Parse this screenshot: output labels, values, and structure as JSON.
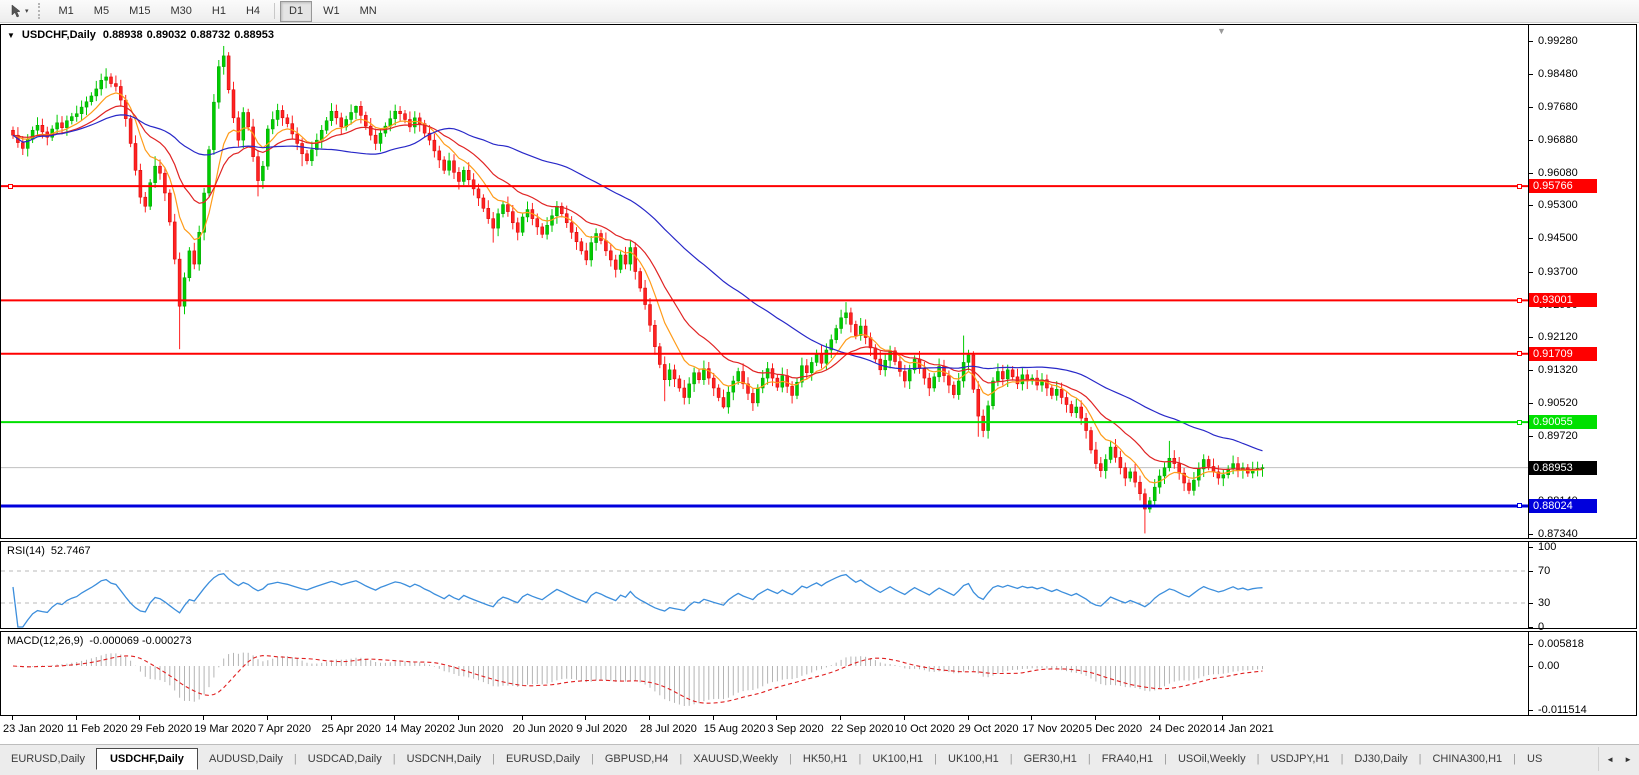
{
  "toolbar": {
    "dropdown_glyph": "▾",
    "timeframes": [
      "M1",
      "M5",
      "M15",
      "M30",
      "H1",
      "H4",
      "D1",
      "W1",
      "MN"
    ],
    "active_timeframe": "D1"
  },
  "main_chart": {
    "collapse_glyph": "▼",
    "symbol": "USDCHF,Daily",
    "open": "0.88938",
    "high": "0.89032",
    "low": "0.88732",
    "close": "0.88953",
    "shift_marker_glyph": "▼"
  },
  "rsi_panel": {
    "label": "RSI(14)",
    "value": "52.7467"
  },
  "macd_panel": {
    "label": "MACD(12,26,9)",
    "values": "-0.000069 -0.000273"
  },
  "chart_data": {
    "type": "candlestick",
    "symbol": "USDCHF",
    "timeframe": "Daily",
    "last_ohlc": {
      "open": 0.88938,
      "high": 0.89032,
      "low": 0.88732,
      "close": 0.88953
    },
    "y_axis_labels": [
      "0.99280",
      "0.98480",
      "0.97680",
      "0.96880",
      "0.96080",
      "0.95300",
      "0.94500",
      "0.93700",
      "0.92900",
      "0.92120",
      "0.91320",
      "0.90520",
      "0.89720",
      "0.88920",
      "0.88140",
      "0.87340"
    ],
    "x_ticks": [
      {
        "bar": 0,
        "label": "23 Jan 2020"
      },
      {
        "bar": 13,
        "label": "11 Feb 2020"
      },
      {
        "bar": 26,
        "label": "29 Feb 2020"
      },
      {
        "bar": 39,
        "label": "19 Mar 2020"
      },
      {
        "bar": 52,
        "label": "7 Apr 2020"
      },
      {
        "bar": 65,
        "label": "25 Apr 2020"
      },
      {
        "bar": 78,
        "label": "14 May 2020"
      },
      {
        "bar": 91,
        "label": "2 Jun 2020"
      },
      {
        "bar": 104,
        "label": "20 Jun 2020"
      },
      {
        "bar": 117,
        "label": "9 Jul 2020"
      },
      {
        "bar": 130,
        "label": "28 Jul 2020"
      },
      {
        "bar": 143,
        "label": "15 Aug 2020"
      },
      {
        "bar": 156,
        "label": "3 Sep 2020"
      },
      {
        "bar": 169,
        "label": "22 Sep 2020"
      },
      {
        "bar": 182,
        "label": "10 Oct 2020"
      },
      {
        "bar": 195,
        "label": "29 Oct 2020"
      },
      {
        "bar": 208,
        "label": "17 Nov 2020"
      },
      {
        "bar": 221,
        "label": "5 Dec 2020"
      },
      {
        "bar": 234,
        "label": "24 Dec 2020"
      },
      {
        "bar": 247,
        "label": "14 Jan 2021"
      }
    ],
    "hlines": [
      {
        "price": 0.95766,
        "label": "0.95766",
        "color": "#ff0000",
        "width": 2,
        "text_color": "#ffffff",
        "left_handle": true
      },
      {
        "price": 0.93001,
        "label": "0.93001",
        "color": "#ff0000",
        "width": 2,
        "text_color": "#ffffff",
        "left_handle": false
      },
      {
        "price": 0.91709,
        "label": "0.91709",
        "color": "#ff0000",
        "width": 2,
        "text_color": "#ffffff",
        "left_handle": false
      },
      {
        "price": 0.90055,
        "label": "0.90055",
        "color": "#00e000",
        "width": 2,
        "text_color": "#ffffff",
        "left_handle": false
      },
      {
        "price": 0.88024,
        "label": "0.88024",
        "color": "#0000dc",
        "width": 3,
        "text_color": "#ffffff",
        "left_handle": false
      }
    ],
    "current_price": {
      "price": 0.88953,
      "label": "0.88953",
      "line_color": "#c0c0c0",
      "box_color": "#000000",
      "text_color": "#ffffff"
    },
    "candles": {
      "bull_color": "#00cc00",
      "bull_stroke": "#00a000",
      "bear_color": "#ff2222",
      "bear_stroke": "#d40000",
      "first_open": 0.9712,
      "closes": [
        0.97,
        0.9682,
        0.9668,
        0.969,
        0.9712,
        0.9724,
        0.9708,
        0.9695,
        0.9715,
        0.973,
        0.9718,
        0.9735,
        0.9745,
        0.9752,
        0.9768,
        0.9781,
        0.9795,
        0.9812,
        0.9833,
        0.9841,
        0.9825,
        0.9818,
        0.9785,
        0.974,
        0.968,
        0.9615,
        0.955,
        0.9528,
        0.9585,
        0.9625,
        0.9608,
        0.956,
        0.949,
        0.94,
        0.9286,
        0.9355,
        0.942,
        0.9388,
        0.9465,
        0.956,
        0.9665,
        0.978,
        0.9866,
        0.9892,
        0.981,
        0.9742,
        0.9688,
        0.9755,
        0.972,
        0.9648,
        0.959,
        0.9625,
        0.9715,
        0.9738,
        0.976,
        0.9742,
        0.9728,
        0.9703,
        0.968,
        0.9655,
        0.9638,
        0.9665,
        0.9688,
        0.9712,
        0.9735,
        0.9758,
        0.9742,
        0.972,
        0.9738,
        0.9755,
        0.977,
        0.9748,
        0.9722,
        0.97,
        0.968,
        0.9705,
        0.9722,
        0.974,
        0.9758,
        0.9752,
        0.9738,
        0.972,
        0.9742,
        0.9728,
        0.9705,
        0.9688,
        0.9662,
        0.964,
        0.9615,
        0.9638,
        0.961,
        0.9588,
        0.9615,
        0.9592,
        0.957,
        0.9548,
        0.9523,
        0.9498,
        0.9475,
        0.951,
        0.9532,
        0.9515,
        0.9488,
        0.9465,
        0.9502,
        0.952,
        0.9498,
        0.9478,
        0.946,
        0.9482,
        0.9505,
        0.9528,
        0.951,
        0.9488,
        0.9465,
        0.9442,
        0.942,
        0.9398,
        0.944,
        0.9462,
        0.9445,
        0.942,
        0.9398,
        0.9375,
        0.941,
        0.9388,
        0.9428,
        0.937,
        0.933,
        0.929,
        0.924,
        0.9188,
        0.9145,
        0.9108,
        0.9132,
        0.911,
        0.9088,
        0.9065,
        0.9098,
        0.9125,
        0.9108,
        0.9135,
        0.9112,
        0.9088,
        0.9065,
        0.9042,
        0.9078,
        0.9105,
        0.9128,
        0.9098,
        0.9075,
        0.9052,
        0.9088,
        0.9112,
        0.9135,
        0.9112,
        0.909,
        0.9118,
        0.9092,
        0.907,
        0.9102,
        0.9142,
        0.9125,
        0.915,
        0.9172,
        0.9148,
        0.918,
        0.9205,
        0.9232,
        0.9258,
        0.927,
        0.9242,
        0.9215,
        0.9238,
        0.921,
        0.9185,
        0.9158,
        0.9132,
        0.9155,
        0.9178,
        0.9152,
        0.9128,
        0.9105,
        0.9132,
        0.9158,
        0.9135,
        0.9112,
        0.9088,
        0.9115,
        0.914,
        0.9118,
        0.9095,
        0.9072,
        0.9105,
        0.915,
        0.9168,
        0.9085,
        0.902,
        0.8985,
        0.9045,
        0.9105,
        0.9128,
        0.911,
        0.9132,
        0.9115,
        0.9098,
        0.912,
        0.9105,
        0.9112,
        0.9095,
        0.9108,
        0.9088,
        0.907,
        0.9085,
        0.9065,
        0.9048,
        0.9028,
        0.9042,
        0.9015,
        0.8985,
        0.8938,
        0.8905,
        0.8888,
        0.8915,
        0.8945,
        0.892,
        0.8895,
        0.887,
        0.8885,
        0.886,
        0.8832,
        0.8795,
        0.8815,
        0.8848,
        0.8875,
        0.8895,
        0.8918,
        0.8905,
        0.8882,
        0.8858,
        0.884,
        0.8865,
        0.8892,
        0.8915,
        0.8898,
        0.8885,
        0.887,
        0.8878,
        0.8892,
        0.8905,
        0.8888,
        0.8895,
        0.8882,
        0.889,
        0.88938,
        0.88953
      ],
      "wick_overrides": {
        "19": {
          "h": 0.9862
        },
        "27": {
          "l": 0.9513
        },
        "29": {
          "h": 0.9649
        },
        "34": {
          "l": 0.9182
        },
        "43": {
          "h": 0.9916
        },
        "50": {
          "l": 0.9552
        },
        "59": {
          "l": 0.9625
        },
        "70": {
          "h": 0.9772
        },
        "98": {
          "l": 0.944
        },
        "133": {
          "l": 0.9056
        },
        "137": {
          "l": 0.9048
        },
        "145": {
          "l": 0.9038
        },
        "170": {
          "h": 0.9296
        },
        "194": {
          "h": 0.9215
        },
        "197": {
          "l": 0.897
        },
        "224": {
          "h": 0.896
        },
        "231": {
          "l": 0.8736
        },
        "236": {
          "h": 0.896
        },
        "255": {
          "h": 0.89032,
          "l": 0.88732
        }
      }
    },
    "moving_averages": [
      {
        "name": "ma-fast",
        "type": "ema",
        "period": 9,
        "color": "#ff9c1a"
      },
      {
        "name": "ma-mid",
        "type": "ema",
        "period": 20,
        "color": "#e02424"
      },
      {
        "name": "ma-slow",
        "type": "sma",
        "period": 50,
        "color": "#2828c8"
      }
    ],
    "rsi": {
      "period": 14,
      "color": "#3c8edc",
      "levels": [
        70,
        30
      ],
      "y_axis_labels": [
        "100",
        "70",
        "30",
        "0"
      ]
    },
    "macd": {
      "fast": 12,
      "slow": 26,
      "signal": 9,
      "hist_color": "#b4b4b4",
      "signal_color": "#e02020",
      "y_axis_labels": [
        "0.005818",
        "0.00",
        "-0.011514"
      ],
      "y_max": 0.005818,
      "y_min": -0.011514
    }
  },
  "tab_bar": {
    "tabs": [
      "EURUSD,Daily",
      "USDCHF,Daily",
      "AUDUSD,Daily",
      "USDCAD,Daily",
      "USDCNH,Daily",
      "EURUSD,Daily",
      "GBPUSD,H4",
      "XAUUSD,Weekly",
      "HK50,H1",
      "UK100,H1",
      "UK100,H1",
      "GER30,H1",
      "FRA40,H1",
      "USOil,Weekly",
      "USDJPY,H1",
      "DJ30,Daily",
      "CHINA300,H1",
      "US"
    ],
    "active_index": 1,
    "scroll_left_glyph": "◄",
    "scroll_right_glyph": "►"
  }
}
